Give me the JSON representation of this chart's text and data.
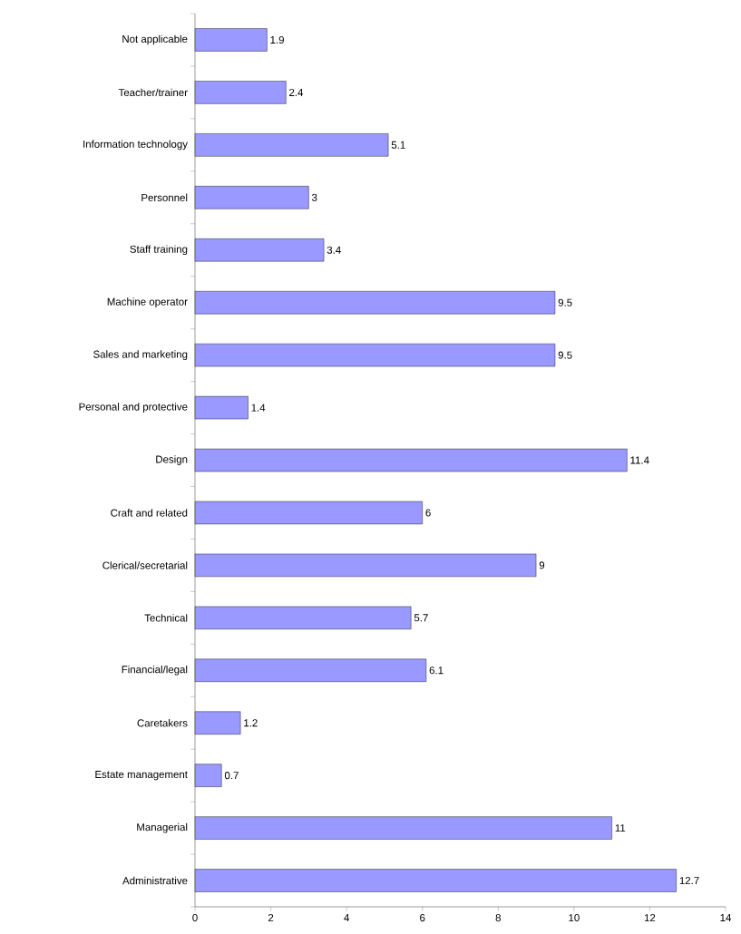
{
  "chart_data": {
    "type": "bar",
    "orientation": "horizontal",
    "categories": [
      "Not applicable",
      "Teacher/trainer",
      "Information technology",
      "Personnel",
      "Staff training",
      "Machine operator",
      "Sales and marketing",
      "Personal and protective",
      "Design",
      "Craft and related",
      "Clerical/secretarial",
      "Technical",
      "Financial/legal",
      "Caretakers",
      "Estate management",
      "Managerial",
      "Administrative"
    ],
    "values": [
      1.9,
      2.4,
      5.1,
      3,
      3.4,
      9.5,
      9.5,
      1.4,
      11.4,
      6,
      9,
      5.7,
      6.1,
      1.2,
      0.7,
      11,
      12.7
    ],
    "color": "#9999ff",
    "data_labels": true,
    "xlim": [
      0,
      14
    ],
    "xticks": [
      0,
      2,
      4,
      6,
      8,
      10,
      12,
      14
    ]
  }
}
